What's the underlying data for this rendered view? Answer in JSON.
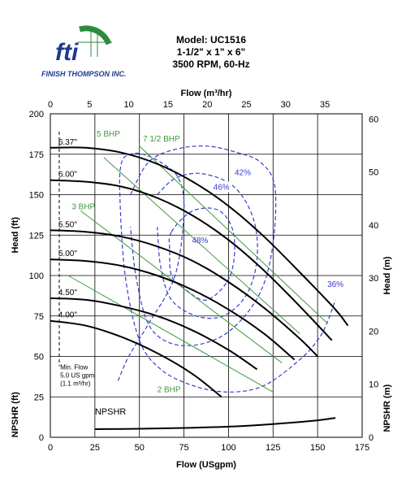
{
  "header": {
    "company": "FINISH THOMPSON INC.",
    "logo_text": "fti",
    "model": "Model: UC1516",
    "size": "1-1/2\" x 1\" x 6\"",
    "speed": "3500 RPM, 60-Hz"
  },
  "colors": {
    "head_curves": "#000000",
    "bhp_lines": "#3c9a3c",
    "efficiency": "#3a3ad0",
    "grid": "#000000",
    "logo_green": "#2e8b3e",
    "logo_blue": "#1d3a8f"
  },
  "chart_data": {
    "type": "line",
    "xlabel": "Flow (USgpm)",
    "x2label": "Flow (m³/hr)",
    "ylabel": "Head (ft)",
    "ylabel_lower": "NPSHR (ft)",
    "y2label": "Head (m)",
    "y2label_lower": "NPSHR (m)",
    "xlim": [
      0,
      175
    ],
    "ylim": [
      0,
      200
    ],
    "x2lim": [
      0,
      39.75
    ],
    "y2lim": [
      0,
      60.96
    ],
    "x_ticks": [
      0,
      25,
      50,
      75,
      100,
      125,
      150,
      175
    ],
    "y_ticks": [
      0,
      25,
      50,
      75,
      100,
      125,
      150,
      175,
      200
    ],
    "x2_ticks": [
      0,
      5,
      10,
      15,
      20,
      25,
      30,
      35
    ],
    "y2_ticks": [
      0,
      10,
      20,
      30,
      40,
      50,
      60
    ],
    "grid": true,
    "impeller_curves": [
      {
        "name": "6.37\"",
        "x": [
          0,
          20,
          40,
          60,
          80,
          100,
          120,
          140,
          160,
          167
        ],
        "y": [
          179,
          179,
          176,
          169,
          158,
          143,
          124,
          102,
          79,
          69
        ]
      },
      {
        "name": "6.00\"",
        "x": [
          0,
          20,
          40,
          60,
          80,
          100,
          120,
          140,
          158
        ],
        "y": [
          159,
          158,
          155,
          148,
          137,
          122,
          103,
          81,
          60
        ]
      },
      {
        "name": "5.50\"",
        "x": [
          0,
          20,
          40,
          60,
          80,
          100,
          120,
          140,
          150
        ],
        "y": [
          128,
          127,
          124,
          118,
          109,
          96,
          80,
          61,
          50
        ]
      },
      {
        "name": "5.00\"",
        "x": [
          0,
          20,
          40,
          60,
          80,
          100,
          120,
          137
        ],
        "y": [
          110,
          109,
          106,
          100,
          91,
          79,
          64,
          48
        ]
      },
      {
        "name": "4.50\"",
        "x": [
          0,
          20,
          40,
          60,
          80,
          100,
          116
        ],
        "y": [
          86,
          85,
          81,
          75,
          66,
          54,
          42
        ]
      },
      {
        "name": "4.00\"",
        "x": [
          0,
          20,
          40,
          60,
          80,
          96
        ],
        "y": [
          72,
          69,
          62,
          52,
          39,
          25
        ]
      }
    ],
    "bhp_lines": [
      {
        "label": "2 BHP",
        "x": [
          10,
          125
        ],
        "y": [
          100,
          28
        ]
      },
      {
        "label": "3 BHP",
        "x": [
          17,
          130
        ],
        "y": [
          140,
          46
        ]
      },
      {
        "label": "5 BHP",
        "x": [
          30,
          140
        ],
        "y": [
          173,
          64
        ]
      },
      {
        "label": "7 1/2 BHP",
        "x": [
          50,
          155
        ],
        "y": [
          180,
          71
        ]
      }
    ],
    "efficiency_contours": [
      {
        "label": "48%",
        "x": [
          68,
          80,
          95,
          103,
          101,
          88,
          75,
          68,
          67,
          68
        ],
        "y": [
          127,
          140,
          140,
          125,
          100,
          85,
          92,
          100,
          115,
          127
        ]
      },
      {
        "label": "46%",
        "x": [
          60,
          70,
          85,
          103,
          114,
          116,
          110,
          97,
          82,
          68,
          62,
          60
        ],
        "y": [
          150,
          160,
          163,
          155,
          135,
          110,
          88,
          75,
          75,
          85,
          105,
          130
        ]
      },
      {
        "label": "42%",
        "x": [
          45,
          55,
          70,
          88,
          105,
          118,
          126,
          125,
          118,
          103,
          86,
          68,
          55,
          48,
          45
        ],
        "y": [
          150,
          170,
          178,
          180,
          176,
          170,
          155,
          120,
          90,
          68,
          58,
          58,
          70,
          100,
          130
        ]
      },
      {
        "label": "36%",
        "x": [
          38,
          44,
          55,
          70,
          75,
          72,
          62,
          52,
          45,
          40,
          39,
          42,
          50,
          62,
          80,
          100,
          120,
          140,
          150,
          155,
          160
        ],
        "y": [
          35,
          50,
          70,
          100,
          140,
          160,
          170,
          175,
          175,
          170,
          150,
          100,
          60,
          42,
          32,
          28,
          32,
          48,
          60,
          70,
          85
        ]
      }
    ],
    "min_flow": {
      "x": 5,
      "label_lines": [
        "Min. Flow",
        "5.0 US gpm",
        "(1.1 m³/hr)"
      ]
    },
    "npshr": {
      "label": "NPSHR",
      "x": [
        25,
        50,
        75,
        100,
        125,
        150,
        160
      ],
      "y": [
        5,
        5.3,
        5.8,
        6.6,
        8.2,
        10.5,
        12
      ]
    }
  }
}
